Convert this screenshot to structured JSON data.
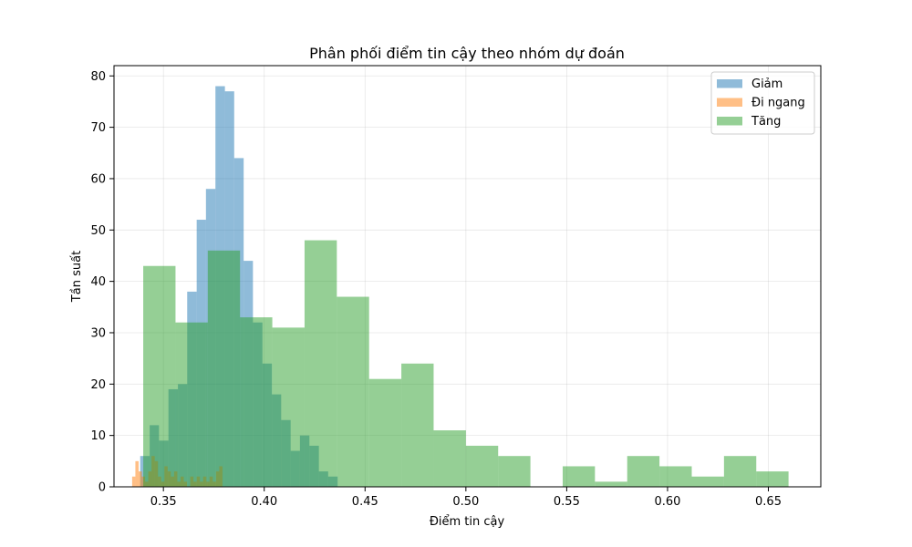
{
  "chart_data": {
    "type": "histogram",
    "title": "Phân phối điểm tin cậy theo nhóm dự đoán",
    "xlabel": "Điểm tin cậy",
    "ylabel": "Tần suất",
    "xlim": [
      0.3255,
      0.676
    ],
    "ylim": [
      0,
      82
    ],
    "x_ticks": [
      0.35,
      0.4,
      0.45,
      0.5,
      0.55,
      0.6,
      0.65
    ],
    "x_tick_labels": [
      "0.35",
      "0.40",
      "0.45",
      "0.50",
      "0.55",
      "0.60",
      "0.65"
    ],
    "y_ticks": [
      0,
      10,
      20,
      30,
      40,
      50,
      60,
      70,
      80
    ],
    "y_tick_labels": [
      "0",
      "10",
      "20",
      "30",
      "40",
      "50",
      "60",
      "70",
      "80"
    ],
    "grid": true,
    "legend": "top-right",
    "series": [
      {
        "name": "Giảm",
        "color": "#1f77b4",
        "opacity": 0.5,
        "bins": [
          [
            0.3385,
            0.3432,
            6
          ],
          [
            0.3432,
            0.3478,
            12
          ],
          [
            0.3478,
            0.3525,
            9
          ],
          [
            0.3525,
            0.3572,
            19
          ],
          [
            0.3572,
            0.3618,
            20
          ],
          [
            0.3618,
            0.3665,
            38
          ],
          [
            0.3665,
            0.3711,
            52
          ],
          [
            0.3711,
            0.3758,
            58
          ],
          [
            0.3758,
            0.3805,
            78
          ],
          [
            0.3805,
            0.3851,
            77
          ],
          [
            0.3851,
            0.3898,
            64
          ],
          [
            0.3898,
            0.3944,
            44
          ],
          [
            0.3944,
            0.3991,
            32
          ],
          [
            0.3991,
            0.4038,
            24
          ],
          [
            0.4038,
            0.4084,
            18
          ],
          [
            0.4084,
            0.4131,
            13
          ],
          [
            0.4131,
            0.4177,
            7
          ],
          [
            0.4177,
            0.4224,
            10
          ],
          [
            0.4224,
            0.4271,
            8
          ],
          [
            0.4271,
            0.4317,
            3
          ],
          [
            0.4317,
            0.4364,
            2
          ]
        ]
      },
      {
        "name": "Đi ngang",
        "color": "#ff7f0e",
        "opacity": 0.5,
        "bins": [
          [
            0.3345,
            0.3361,
            2
          ],
          [
            0.3361,
            0.3377,
            5
          ],
          [
            0.3377,
            0.3393,
            3
          ],
          [
            0.3393,
            0.3409,
            2
          ],
          [
            0.3409,
            0.3425,
            1
          ],
          [
            0.3425,
            0.3441,
            3
          ],
          [
            0.3441,
            0.3457,
            6
          ],
          [
            0.3457,
            0.3473,
            5
          ],
          [
            0.3473,
            0.3489,
            2
          ],
          [
            0.3489,
            0.3505,
            1
          ],
          [
            0.3505,
            0.3521,
            4
          ],
          [
            0.3521,
            0.3537,
            3
          ],
          [
            0.3537,
            0.3553,
            2
          ],
          [
            0.3553,
            0.3569,
            3
          ],
          [
            0.3569,
            0.3585,
            1
          ],
          [
            0.3585,
            0.3601,
            2
          ],
          [
            0.3601,
            0.3617,
            1
          ],
          [
            0.3617,
            0.3633,
            0
          ],
          [
            0.3633,
            0.3649,
            2
          ],
          [
            0.3649,
            0.3665,
            1
          ],
          [
            0.3665,
            0.3681,
            2
          ],
          [
            0.3681,
            0.3697,
            1
          ],
          [
            0.3697,
            0.3713,
            2
          ],
          [
            0.3713,
            0.3729,
            1
          ],
          [
            0.3729,
            0.3745,
            2
          ],
          [
            0.3745,
            0.3761,
            1
          ],
          [
            0.3761,
            0.3777,
            3
          ],
          [
            0.3777,
            0.3793,
            4
          ]
        ]
      },
      {
        "name": "Tăng",
        "color": "#2ca02c",
        "opacity": 0.5,
        "bins": [
          [
            0.34,
            0.356,
            43
          ],
          [
            0.356,
            0.372,
            32
          ],
          [
            0.372,
            0.388,
            46
          ],
          [
            0.388,
            0.404,
            33
          ],
          [
            0.404,
            0.42,
            31
          ],
          [
            0.42,
            0.436,
            48
          ],
          [
            0.436,
            0.452,
            37
          ],
          [
            0.452,
            0.468,
            21
          ],
          [
            0.468,
            0.484,
            24
          ],
          [
            0.484,
            0.5,
            11
          ],
          [
            0.5,
            0.516,
            8
          ],
          [
            0.516,
            0.532,
            6
          ],
          [
            0.532,
            0.548,
            0
          ],
          [
            0.548,
            0.564,
            4
          ],
          [
            0.564,
            0.58,
            1
          ],
          [
            0.58,
            0.596,
            6
          ],
          [
            0.596,
            0.612,
            4
          ],
          [
            0.612,
            0.628,
            2
          ],
          [
            0.628,
            0.644,
            6
          ],
          [
            0.644,
            0.66,
            3
          ]
        ]
      }
    ]
  }
}
